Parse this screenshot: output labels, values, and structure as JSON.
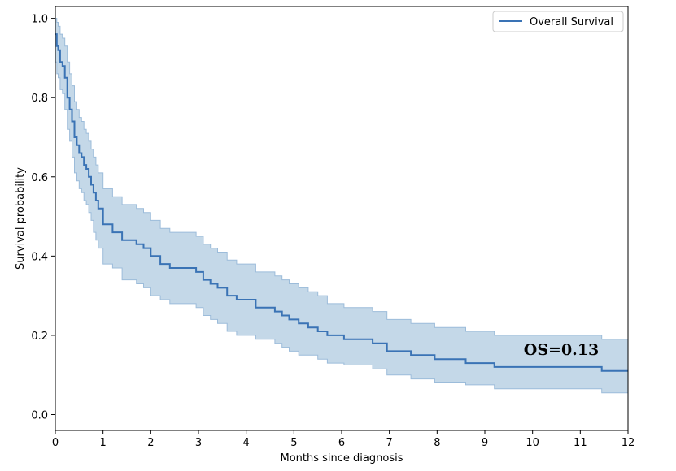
{
  "chart_data": {
    "type": "line",
    "title": "",
    "xlabel": "Months since diagnosis",
    "ylabel": "Survival probability",
    "xlim": [
      0,
      12
    ],
    "ylim": [
      -0.04,
      1.03
    ],
    "x_ticks": [
      0,
      1,
      2,
      3,
      4,
      5,
      6,
      7,
      8,
      9,
      10,
      11,
      12
    ],
    "y_ticks": [
      0.0,
      0.2,
      0.4,
      0.6,
      0.8,
      1.0
    ],
    "x_tick_labels": [
      "0",
      "1",
      "2",
      "3",
      "4",
      "5",
      "6",
      "7",
      "8",
      "9",
      "10",
      "11",
      "12"
    ],
    "y_tick_labels": [
      "0.0",
      "0.2",
      "0.4",
      "0.6",
      "0.8",
      "1.0"
    ],
    "grid": false,
    "legend_position": "top-right",
    "annotation": "OS=0.13",
    "colors": {
      "line": "#3a73b5",
      "band": "#c4d8e8",
      "band_edge": "#9cbcda"
    },
    "series": [
      {
        "name": "Overall Survival",
        "step": "post",
        "x": [
          0,
          0.03,
          0.06,
          0.1,
          0.15,
          0.2,
          0.25,
          0.3,
          0.35,
          0.4,
          0.45,
          0.5,
          0.55,
          0.6,
          0.65,
          0.7,
          0.75,
          0.8,
          0.85,
          0.9,
          1.0,
          1.2,
          1.4,
          1.7,
          1.85,
          2.0,
          2.2,
          2.4,
          2.95,
          3.1,
          3.25,
          3.4,
          3.6,
          3.8,
          4.2,
          4.6,
          4.75,
          4.9,
          5.1,
          5.3,
          5.5,
          5.7,
          6.05,
          6.65,
          6.95,
          7.45,
          7.95,
          8.6,
          9.2,
          11.45,
          12.0
        ],
        "values": [
          0.96,
          0.93,
          0.92,
          0.89,
          0.88,
          0.85,
          0.8,
          0.77,
          0.74,
          0.7,
          0.68,
          0.66,
          0.65,
          0.63,
          0.62,
          0.6,
          0.58,
          0.56,
          0.54,
          0.52,
          0.48,
          0.46,
          0.44,
          0.43,
          0.42,
          0.4,
          0.38,
          0.37,
          0.36,
          0.34,
          0.33,
          0.32,
          0.3,
          0.29,
          0.27,
          0.26,
          0.25,
          0.24,
          0.23,
          0.22,
          0.21,
          0.2,
          0.19,
          0.18,
          0.16,
          0.15,
          0.14,
          0.13,
          0.12,
          0.11,
          0.11
        ],
        "ci_lower": [
          0.89,
          0.86,
          0.85,
          0.82,
          0.81,
          0.77,
          0.72,
          0.69,
          0.65,
          0.61,
          0.59,
          0.57,
          0.56,
          0.54,
          0.53,
          0.51,
          0.49,
          0.46,
          0.44,
          0.42,
          0.38,
          0.37,
          0.34,
          0.33,
          0.32,
          0.3,
          0.29,
          0.28,
          0.27,
          0.25,
          0.24,
          0.23,
          0.21,
          0.2,
          0.19,
          0.18,
          0.17,
          0.16,
          0.15,
          0.15,
          0.14,
          0.13,
          0.125,
          0.115,
          0.1,
          0.09,
          0.08,
          0.075,
          0.065,
          0.055,
          0.055
        ],
        "ci_upper": [
          1.0,
          0.99,
          0.98,
          0.96,
          0.95,
          0.93,
          0.89,
          0.86,
          0.83,
          0.79,
          0.77,
          0.75,
          0.74,
          0.72,
          0.71,
          0.69,
          0.67,
          0.65,
          0.63,
          0.61,
          0.57,
          0.55,
          0.53,
          0.52,
          0.51,
          0.49,
          0.47,
          0.46,
          0.45,
          0.43,
          0.42,
          0.41,
          0.39,
          0.38,
          0.36,
          0.35,
          0.34,
          0.33,
          0.32,
          0.31,
          0.3,
          0.28,
          0.27,
          0.26,
          0.24,
          0.23,
          0.22,
          0.21,
          0.2,
          0.19,
          0.175
        ]
      }
    ]
  }
}
